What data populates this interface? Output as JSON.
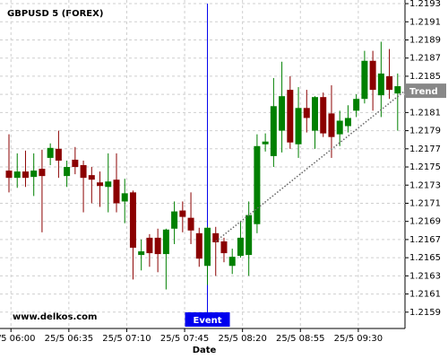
{
  "chart_data": {
    "type": "candlestick",
    "title": "GBPUSD 5 (FOREX)",
    "watermark": "www.delkos.com",
    "x_label": "Date",
    "categories": [
      null,
      "25/5 06:00",
      null,
      null,
      null,
      null,
      null,
      null,
      "25/5 06:35",
      null,
      null,
      null,
      null,
      null,
      null,
      "25/5 07:10",
      null,
      null,
      null,
      null,
      null,
      null,
      "25/5 07:45",
      null,
      null,
      null,
      null,
      null,
      null,
      "25/5 08:20",
      null,
      null,
      null,
      null,
      null,
      null,
      "25/5 08:55",
      null,
      null,
      null,
      null,
      null,
      null,
      "25/5 09:30",
      null,
      null,
      null,
      null
    ],
    "open": [
      1.21746,
      1.21738,
      1.21745,
      1.21739,
      1.21748,
      1.2176,
      1.2177,
      1.2174,
      1.21758,
      1.21752,
      1.21741,
      1.21733,
      1.21728,
      1.21736,
      1.21712,
      1.21722,
      1.21653,
      1.21672,
      1.21672,
      1.21654,
      1.21682,
      1.21702,
      1.21694,
      1.21677,
      1.21641,
      1.21677,
      1.21668,
      1.21641,
      1.21652,
      1.21653,
      1.21687,
      1.21775,
      1.21762,
      1.2179,
      1.21835,
      1.21775,
      1.21815,
      1.2179,
      1.21827,
      1.21809,
      1.21786,
      1.21795,
      1.21812,
      1.21825,
      1.21867,
      1.21829,
      1.2185,
      1.21831
    ],
    "high": [
      1.21786,
      1.21765,
      1.21768,
      1.21765,
      1.21769,
      1.21776,
      1.2179,
      1.21757,
      1.21772,
      1.21757,
      1.2175,
      1.21745,
      1.21765,
      1.21765,
      1.21737,
      1.21724,
      1.2167,
      1.21676,
      1.21682,
      1.21682,
      1.21712,
      1.21712,
      1.21722,
      1.21683,
      1.21684,
      1.21684,
      1.21672,
      1.2166,
      1.2169,
      1.21712,
      1.21786,
      1.21787,
      1.21848,
      1.21866,
      1.2185,
      1.21838,
      1.21835,
      1.21828,
      1.21832,
      1.2184,
      1.21812,
      1.21818,
      1.2183,
      1.21878,
      1.21878,
      1.21888,
      1.2188,
      1.21853
    ],
    "low": [
      1.21722,
      1.21727,
      1.21728,
      1.21718,
      1.21678,
      1.21752,
      1.21738,
      1.21728,
      1.21742,
      1.217,
      1.2171,
      1.21706,
      1.217,
      1.217,
      1.21688,
      1.21626,
      1.21636,
      1.2164,
      1.21634,
      1.21615,
      1.21665,
      1.21678,
      1.21665,
      1.2164,
      1.2162,
      1.2163,
      1.21645,
      1.21632,
      1.2165,
      1.2163,
      1.21677,
      1.21767,
      1.2175,
      1.21766,
      1.2177,
      1.2176,
      1.21788,
      1.2177,
      1.21783,
      1.2176,
      1.21773,
      1.21788,
      1.21805,
      1.2182,
      1.21812,
      1.21805,
      1.21825,
      1.2179
    ],
    "close": [
      1.21738,
      1.21745,
      1.21738,
      1.21746,
      1.2174,
      1.21771,
      1.21757,
      1.2175,
      1.2175,
      1.21738,
      1.21736,
      1.21729,
      1.21734,
      1.2171,
      1.21721,
      1.21661,
      1.21657,
      1.21655,
      1.21654,
      1.21681,
      1.21701,
      1.21695,
      1.2168,
      1.21649,
      1.21683,
      1.21667,
      1.21655,
      1.21651,
      1.21672,
      1.21697,
      1.21773,
      1.21778,
      1.21817,
      1.21828,
      1.21777,
      1.21815,
      1.21804,
      1.21827,
      1.21787,
      1.21783,
      1.21801,
      1.21804,
      1.21825,
      1.21867,
      1.21835,
      1.21853,
      1.21835,
      1.21839
    ],
    "up_color": "#008000",
    "down_color": "#8b0000",
    "ylim": [
      1.21572,
      1.21934
    ],
    "yticks": [
      1.2193,
      1.2191,
      1.2189,
      1.2187,
      1.2185,
      1.2183,
      1.2181,
      1.2179,
      1.2177,
      1.2175,
      1.2173,
      1.2171,
      1.2169,
      1.2167,
      1.2165,
      1.2163,
      1.2161,
      1.2159
    ],
    "grid": true,
    "event": {
      "label": "Event",
      "color": "#0000ee"
    },
    "trend": {
      "label": "Trend",
      "values": [
        1.21668,
        1.21834
      ],
      "color": "#888888"
    }
  }
}
